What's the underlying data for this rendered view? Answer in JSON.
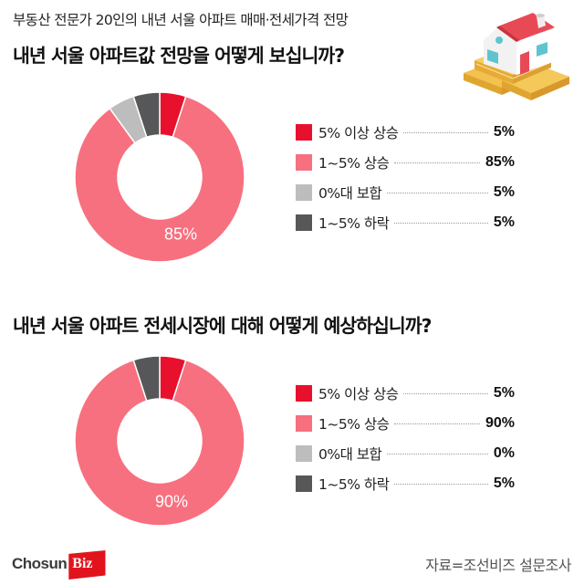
{
  "header": {
    "subtitle": "부동산 전문가 20인의 내년 서울 아파트 매매·전세가격 전망"
  },
  "sections": [
    {
      "question": "내년 서울 아파트값 전망을 어떻게 보십니까?",
      "center_label": "85%",
      "legend": [
        {
          "label": "5% 이상 상승",
          "value": "5%",
          "color": "#E8112D"
        },
        {
          "label": "1~5% 상승",
          "value": "85%",
          "color": "#F7707F"
        },
        {
          "label": "0%대 보합",
          "value": "5%",
          "color": "#BDBDBD"
        },
        {
          "label": "1~5% 하락",
          "value": "5%",
          "color": "#555759"
        }
      ]
    },
    {
      "question": "내년 서울 아파트 전세시장에 대해 어떻게 예상하십니까?",
      "center_label": "90%",
      "legend": [
        {
          "label": "5% 이상 상승",
          "value": "5%",
          "color": "#E8112D"
        },
        {
          "label": "1~5% 상승",
          "value": "90%",
          "color": "#F7707F"
        },
        {
          "label": "0%대 보합",
          "value": "0%",
          "color": "#BDBDBD"
        },
        {
          "label": "1~5% 하락",
          "value": "5%",
          "color": "#555759"
        }
      ]
    }
  ],
  "footer": {
    "logo_main": "Chosun",
    "logo_accent": "Biz",
    "source": "자료=조선비즈 설문조사"
  },
  "chart_data": [
    {
      "type": "pie",
      "variant": "donut",
      "title": "내년 서울 아파트값 전망을 어떻게 보십니까?",
      "subtitle": "부동산 전문가 20인의 내년 서울 아파트 매매·전세가격 전망",
      "categories": [
        "5% 이상 상승",
        "1~5% 상승",
        "0%대 보합",
        "1~5% 하락"
      ],
      "values": [
        5,
        85,
        5,
        5
      ],
      "unit": "%",
      "colors": [
        "#E8112D",
        "#F7707F",
        "#BDBDBD",
        "#555759"
      ],
      "annotations": [
        "85%"
      ],
      "legend_position": "right"
    },
    {
      "type": "pie",
      "variant": "donut",
      "title": "내년 서울 아파트 전세시장에 대해 어떻게 예상하십니까?",
      "categories": [
        "5% 이상 상승",
        "1~5% 상승",
        "0%대 보합",
        "1~5% 하락"
      ],
      "values": [
        5,
        90,
        0,
        5
      ],
      "unit": "%",
      "colors": [
        "#E8112D",
        "#F7707F",
        "#BDBDBD",
        "#555759"
      ],
      "annotations": [
        "90%"
      ],
      "legend_position": "right"
    }
  ]
}
